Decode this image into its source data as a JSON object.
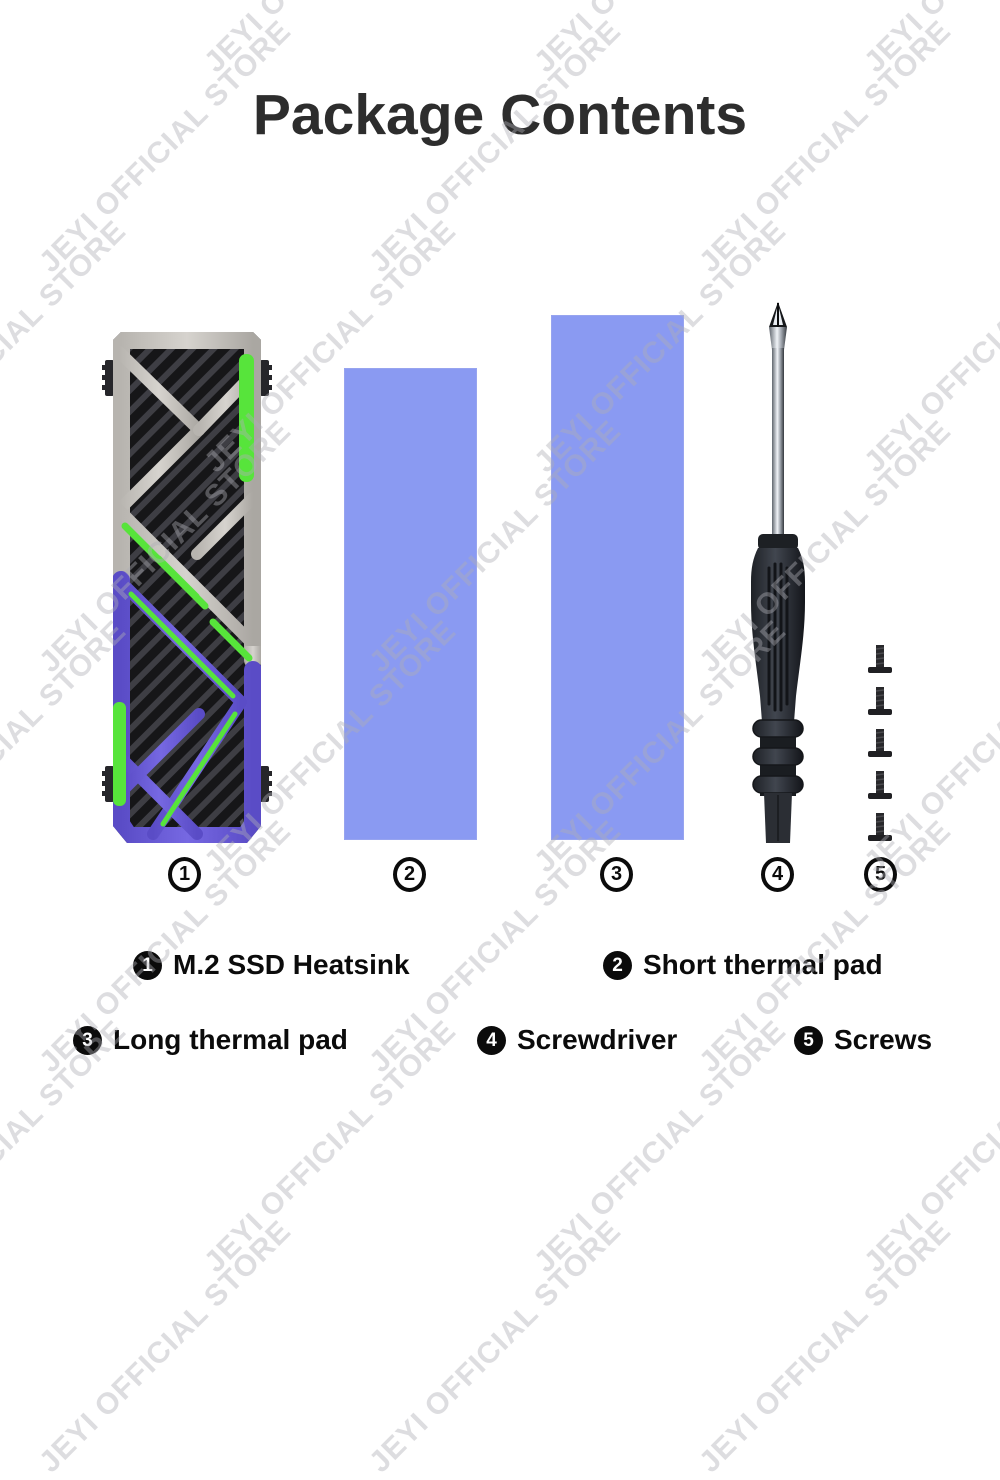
{
  "title": "Package Contents",
  "watermark": {
    "text": "JEYI OFFICIAL STORE",
    "color": "rgba(174,174,180,0.42)"
  },
  "items": [
    {
      "number": "1",
      "label": "M.2 SSD Heatsink"
    },
    {
      "number": "2",
      "label": "Short thermal pad"
    },
    {
      "number": "3",
      "label": "Long thermal pad"
    },
    {
      "number": "4",
      "label": "Screwdriver"
    },
    {
      "number": "5",
      "label": "Screws"
    }
  ],
  "colors": {
    "title_text": "#2d2d2d",
    "caption_text": "#0b0b0b",
    "thermal_pad": "#8a9af2",
    "heatsink_silver": "#c9c6c1",
    "heatsink_purple": "#6a5cd9",
    "heatsink_green": "#57e43b",
    "heatsink_fins": "#18181a",
    "tool_black": "#2b2e33",
    "background": "#ffffff"
  }
}
